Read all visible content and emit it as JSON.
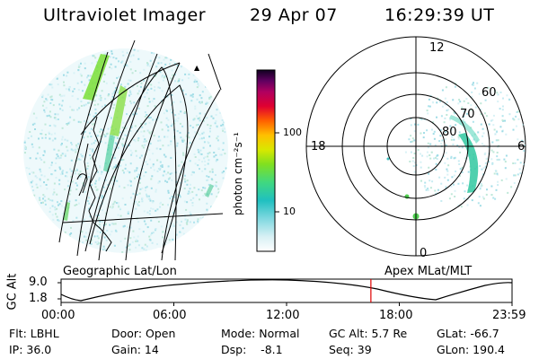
{
  "header": {
    "title": "Ultraviolet Imager",
    "date": "29 Apr 07",
    "time": "16:29:39 UT"
  },
  "colorbar": {
    "label": "photon cm⁻²s⁻¹",
    "ticks": [
      "100",
      "10"
    ]
  },
  "polar": {
    "mlt_labels": {
      "top": "12",
      "left": "18",
      "right": "6",
      "bottom": "0"
    },
    "lat_labels": [
      "60",
      "70",
      "80"
    ]
  },
  "panel_labels": {
    "left": "Geographic Lat/Lon",
    "right": "Apex MLat/MLT"
  },
  "altitude_plot": {
    "ylabel": "GC Alt",
    "yticks": [
      "9.0",
      "1.8"
    ],
    "xticks": [
      "00:00",
      "06:00",
      "12:00",
      "18:00",
      "23:59"
    ],
    "current_time_fraction": 0.687,
    "marker_color": "#e00000"
  },
  "info": {
    "row1": {
      "flt": "Flt: LBHL",
      "door": "Door: Open",
      "mode": "Mode: Normal",
      "gcalt": "GC Alt: 5.7 Re",
      "glat": "GLat: -66.7"
    },
    "row2": {
      "ip": "IP: 36.0",
      "gain": "Gain: 14",
      "dsp": "Dsp:    -8.1",
      "seq": "Seq: 39",
      "glon": "GLon: 190.4"
    }
  }
}
